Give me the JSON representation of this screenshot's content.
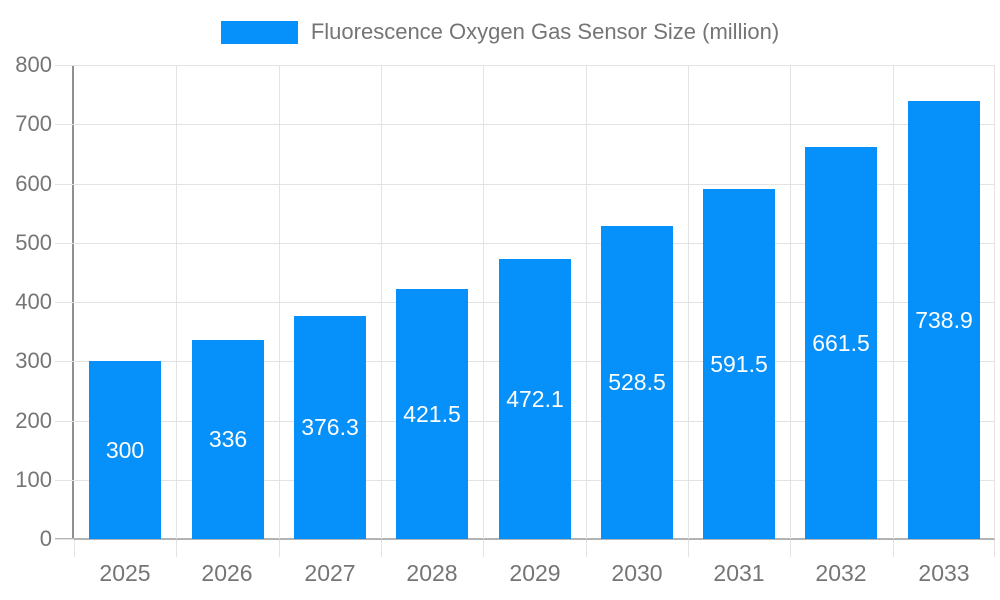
{
  "legend": {
    "label": "Fluorescence Oxygen Gas Sensor Size (million)"
  },
  "chart_data": {
    "type": "bar",
    "title": "Fluorescence Oxygen Gas Sensor Size (million)",
    "categories": [
      "2025",
      "2026",
      "2027",
      "2028",
      "2029",
      "2030",
      "2031",
      "2032",
      "2033"
    ],
    "values": [
      300,
      336,
      376.3,
      421.5,
      472.1,
      528.5,
      591.5,
      661.5,
      738.9
    ],
    "value_labels": [
      "300",
      "336",
      "376.3",
      "421.5",
      "472.1",
      "528.5",
      "591.5",
      "661.5",
      "738.9"
    ],
    "xlabel": "",
    "ylabel": "",
    "ylim": [
      0,
      800
    ],
    "ytick_step": 100,
    "ytick_labels": [
      "0",
      "100",
      "200",
      "300",
      "400",
      "500",
      "600",
      "700",
      "800"
    ],
    "grid": true,
    "legend_position": "top",
    "bar_color": "#0590fa",
    "value_label_color": "#ffffff",
    "axis_text_color": "#757575"
  }
}
